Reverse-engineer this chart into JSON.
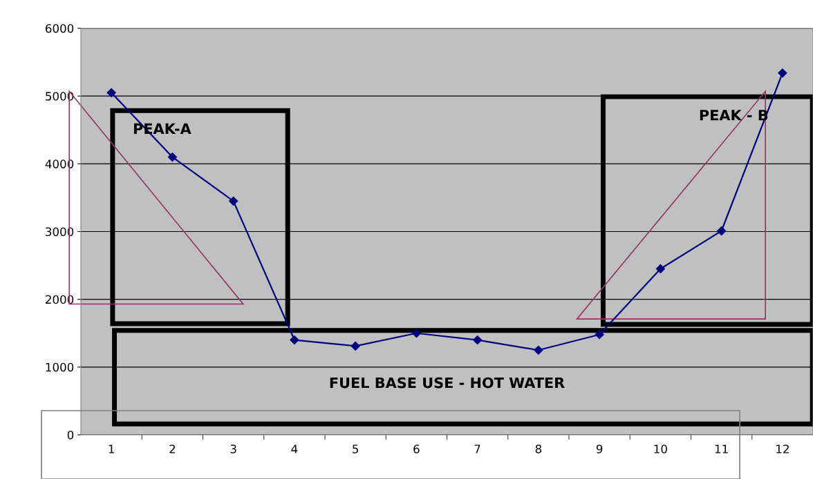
{
  "chart_data": {
    "type": "line",
    "categories": [
      "1",
      "2",
      "3",
      "4",
      "5",
      "6",
      "7",
      "8",
      "9",
      "10",
      "11",
      "12"
    ],
    "series": [
      {
        "color": "#000080",
        "values": [
          5050,
          4100,
          3450,
          1400,
          1310,
          1500,
          1400,
          1250,
          1480,
          2450,
          3010,
          5340
        ]
      }
    ],
    "ylim": [
      0,
      6000
    ],
    "yticks": [
      0,
      1000,
      2000,
      3000,
      4000,
      5000,
      6000
    ],
    "grid": "y",
    "marker": "diamond",
    "line_style": "solid",
    "legend": false,
    "annotations": [
      "PEAK-A",
      "PEAK - B",
      "FUEL BASE USE - HOT WATER"
    ]
  }
}
